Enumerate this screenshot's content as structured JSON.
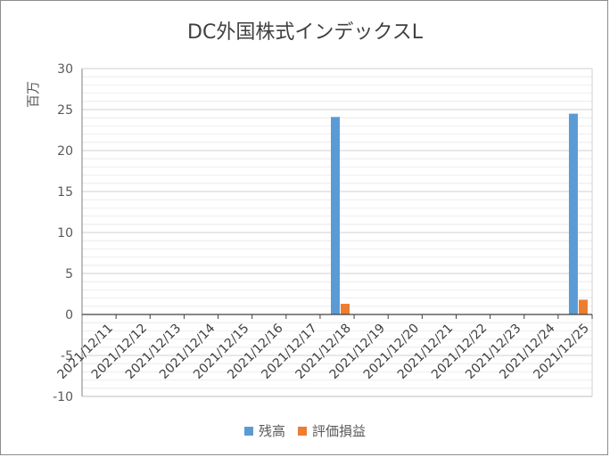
{
  "chart_data": {
    "type": "bar",
    "title": "DC外国株式インデックスL",
    "unit_label": "百万",
    "categories": [
      "2021/12/11",
      "2021/12/12",
      "2021/12/13",
      "2021/12/14",
      "2021/12/15",
      "2021/12/16",
      "2021/12/17",
      "2021/12/18",
      "2021/12/19",
      "2021/12/20",
      "2021/12/21",
      "2021/12/22",
      "2021/12/23",
      "2021/12/24",
      "2021/12/25"
    ],
    "series": [
      {
        "name": "残高",
        "color": "#5b9bd5",
        "values": [
          null,
          null,
          null,
          null,
          null,
          null,
          null,
          24.1,
          null,
          null,
          null,
          null,
          null,
          null,
          24.5
        ]
      },
      {
        "name": "評価損益",
        "color": "#ed7d31",
        "values": [
          null,
          null,
          null,
          null,
          null,
          null,
          null,
          1.3,
          null,
          null,
          null,
          null,
          null,
          null,
          1.8
        ]
      }
    ],
    "ylim": [
      -10,
      30
    ],
    "yticks": [
      -10,
      -5,
      0,
      5,
      10,
      15,
      20,
      25,
      30
    ],
    "grid": true,
    "legend_position": "bottom"
  }
}
